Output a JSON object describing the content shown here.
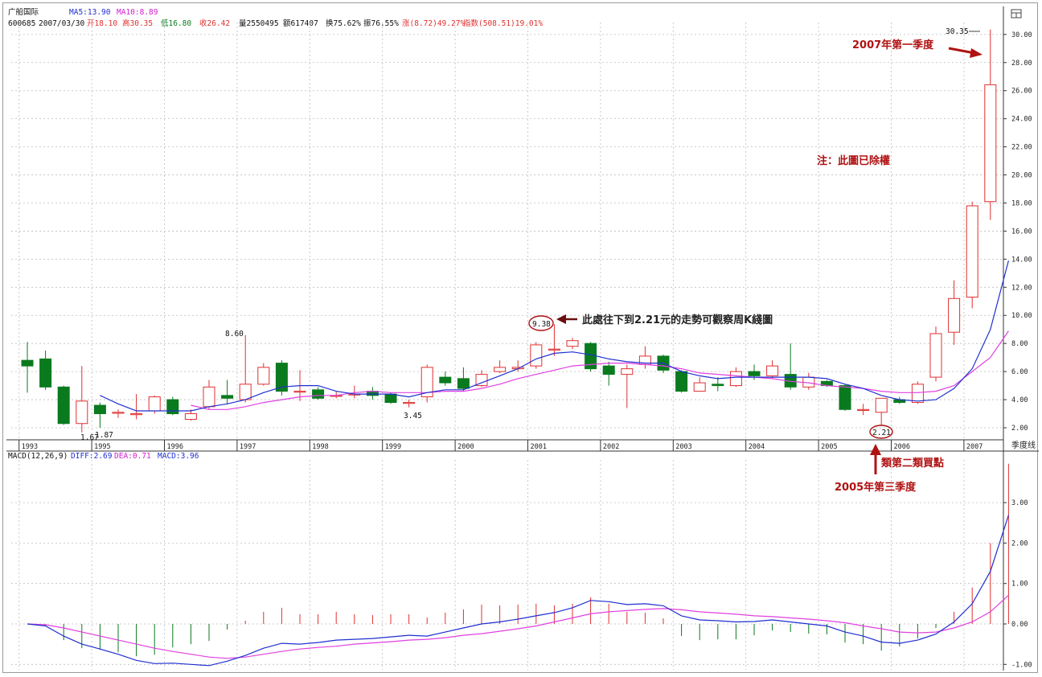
{
  "stock": {
    "name": "广船国际",
    "code": "600685",
    "date": "2007/03/30",
    "ma5": "MA5:13.90",
    "ma10": "MA10:8.89",
    "open": "开18.10",
    "high": "高30.35",
    "low": "低16.80",
    "close": "收26.42",
    "volume": "量2550495",
    "amount": "额617407",
    "turnover1": "换75.62%",
    "turnover2": "振76.55%",
    "change": "涨(8.72)49.27%",
    "index": "指数(508.51)19.01%"
  },
  "macd_header": {
    "name": "MACD(12,26,9)",
    "diff": "DIFF:2.69",
    "dea": "DEA:0.71",
    "macd": "MACD:3.96"
  },
  "period_label": "季度线",
  "price_axis": [
    "30.00",
    "28.00",
    "26.00",
    "24.00",
    "22.00",
    "20.00",
    "18.00",
    "16.00",
    "14.00",
    "12.00",
    "10.00",
    "8.00",
    "6.00",
    "4.00",
    "2.00"
  ],
  "macd_axis": [
    "3.00",
    "2.00",
    "1.00",
    "0.00",
    "-1.00"
  ],
  "years": [
    "1993",
    "1995",
    "1996",
    "1997",
    "1998",
    "1999",
    "2000",
    "2001",
    "2002",
    "2003",
    "2004",
    "2005",
    "2006",
    "2007"
  ],
  "price_labels": {
    "p1": "1.67",
    "p2": "1.87",
    "p3": "8.60",
    "p4": "3.45",
    "p5": "9.38",
    "p6": "2.21",
    "p7": "30.35"
  },
  "annotations": {
    "q1_2007": "2007年第一季度",
    "note": "注：此圖已除權",
    "week_k": "此處往下到2.21元的走勢可觀察周K綫圖",
    "buy_point": "類第二類買點",
    "q3_2005": "2005年第三季度"
  },
  "colors": {
    "up": "#e03030",
    "down": "#0a7a1e",
    "ma5": "#1f2fd0",
    "ma10": "#e040e0",
    "annotation": "#b01212",
    "grid": "#bdbdbd"
  },
  "icons": {
    "corner": "window-restore-icon"
  },
  "chart_data": [
    {
      "type": "candlestick",
      "title": "广船国际 季度线",
      "ylim": [
        1.5,
        31.5
      ],
      "years_axis": [
        "1993",
        "1995",
        "1996",
        "1997",
        "1998",
        "1999",
        "2000",
        "2001",
        "2002",
        "2003",
        "2004",
        "2005",
        "2006",
        "2007"
      ],
      "candles": [
        {
          "o": 6.8,
          "c": 6.4,
          "h": 8.1,
          "l": 4.5
        },
        {
          "o": 6.9,
          "c": 4.9,
          "h": 7.5,
          "l": 4.7
        },
        {
          "o": 4.9,
          "c": 2.3,
          "h": 5.0,
          "l": 2.2
        },
        {
          "o": 2.3,
          "c": 3.9,
          "h": 6.4,
          "l": 1.67
        },
        {
          "o": 3.6,
          "c": 3.0,
          "h": 3.8,
          "l": 2.0
        },
        {
          "o": 3.1,
          "c": 3.1,
          "h": 3.3,
          "l": 2.7
        },
        {
          "o": 3.0,
          "c": 3.0,
          "h": 4.4,
          "l": 2.6
        },
        {
          "o": 3.2,
          "c": 4.2,
          "h": 4.3,
          "l": 3.0
        },
        {
          "o": 4.0,
          "c": 3.0,
          "h": 4.2,
          "l": 2.9
        },
        {
          "o": 2.6,
          "c": 3.0,
          "h": 3.3,
          "l": 2.5
        },
        {
          "o": 3.5,
          "c": 4.9,
          "h": 5.4,
          "l": 3.3
        },
        {
          "o": 4.3,
          "c": 4.1,
          "h": 5.4,
          "l": 3.7
        },
        {
          "o": 4.0,
          "c": 5.1,
          "h": 8.6,
          "l": 3.8
        },
        {
          "o": 5.1,
          "c": 6.3,
          "h": 6.6,
          "l": 5.0
        },
        {
          "o": 6.6,
          "c": 4.6,
          "h": 6.8,
          "l": 4.3
        },
        {
          "o": 4.6,
          "c": 4.6,
          "h": 6.1,
          "l": 3.9
        },
        {
          "o": 4.7,
          "c": 4.1,
          "h": 4.9,
          "l": 4.0
        },
        {
          "o": 4.3,
          "c": 4.3,
          "h": 4.6,
          "l": 4.1
        },
        {
          "o": 4.4,
          "c": 4.4,
          "h": 5.0,
          "l": 4.1
        },
        {
          "o": 4.6,
          "c": 4.3,
          "h": 4.9,
          "l": 4.0
        },
        {
          "o": 4.4,
          "c": 3.8,
          "h": 4.5,
          "l": 3.7
        },
        {
          "o": 3.8,
          "c": 3.8,
          "h": 4.0,
          "l": 3.45
        },
        {
          "o": 4.2,
          "c": 6.3,
          "h": 6.5,
          "l": 3.8
        },
        {
          "o": 5.6,
          "c": 5.2,
          "h": 6.0,
          "l": 5.0
        },
        {
          "o": 5.5,
          "c": 4.8,
          "h": 6.3,
          "l": 4.6
        },
        {
          "o": 5.0,
          "c": 5.8,
          "h": 6.1,
          "l": 4.9
        },
        {
          "o": 6.0,
          "c": 6.3,
          "h": 6.8,
          "l": 5.9
        },
        {
          "o": 6.2,
          "c": 6.3,
          "h": 6.8,
          "l": 6.0
        },
        {
          "o": 6.4,
          "c": 7.9,
          "h": 8.1,
          "l": 6.2
        },
        {
          "o": 7.6,
          "c": 7.6,
          "h": 9.38,
          "l": 7.1
        },
        {
          "o": 7.8,
          "c": 8.2,
          "h": 8.4,
          "l": 7.6
        },
        {
          "o": 8.0,
          "c": 6.2,
          "h": 8.1,
          "l": 6.0
        },
        {
          "o": 6.4,
          "c": 5.8,
          "h": 6.7,
          "l": 5.0
        },
        {
          "o": 5.8,
          "c": 6.2,
          "h": 6.5,
          "l": 3.4
        },
        {
          "o": 6.5,
          "c": 7.1,
          "h": 7.8,
          "l": 6.2
        },
        {
          "o": 7.1,
          "c": 6.1,
          "h": 7.2,
          "l": 5.9
        },
        {
          "o": 6.0,
          "c": 4.6,
          "h": 6.1,
          "l": 4.5
        },
        {
          "o": 4.6,
          "c": 5.2,
          "h": 5.6,
          "l": 4.6
        },
        {
          "o": 5.1,
          "c": 5.0,
          "h": 5.6,
          "l": 4.6
        },
        {
          "o": 5.0,
          "c": 6.0,
          "h": 6.3,
          "l": 4.9
        },
        {
          "o": 6.0,
          "c": 5.7,
          "h": 6.5,
          "l": 5.4
        },
        {
          "o": 5.7,
          "c": 6.4,
          "h": 6.8,
          "l": 5.5
        },
        {
          "o": 5.8,
          "c": 4.9,
          "h": 8.0,
          "l": 4.7
        },
        {
          "o": 4.9,
          "c": 5.6,
          "h": 5.9,
          "l": 4.7
        },
        {
          "o": 5.3,
          "c": 5.0,
          "h": 5.4,
          "l": 4.9
        },
        {
          "o": 5.0,
          "c": 3.3,
          "h": 5.1,
          "l": 3.2
        },
        {
          "o": 3.3,
          "c": 3.3,
          "h": 3.7,
          "l": 2.9
        },
        {
          "o": 3.1,
          "c": 4.1,
          "h": 4.1,
          "l": 2.21
        },
        {
          "o": 4.0,
          "c": 3.8,
          "h": 4.2,
          "l": 3.7
        },
        {
          "o": 3.8,
          "c": 5.1,
          "h": 5.3,
          "l": 3.7
        },
        {
          "o": 5.6,
          "c": 8.7,
          "h": 9.2,
          "l": 5.3
        },
        {
          "o": 8.8,
          "c": 11.2,
          "h": 12.5,
          "l": 7.9
        },
        {
          "o": 11.3,
          "c": 17.8,
          "h": 18.1,
          "l": 10.5
        },
        {
          "o": 18.1,
          "c": 26.42,
          "h": 30.35,
          "l": 16.8
        }
      ],
      "ma5": [
        null,
        null,
        null,
        null,
        4.3,
        3.7,
        3.2,
        3.2,
        3.2,
        3.2,
        3.5,
        3.7,
        4.0,
        4.5,
        4.9,
        5.0,
        5.0,
        4.6,
        4.4,
        4.4,
        4.4,
        4.2,
        4.5,
        4.7,
        4.7,
        5.2,
        5.7,
        6.2,
        6.9,
        7.3,
        7.4,
        7.2,
        6.9,
        6.7,
        6.6,
        6.6,
        6.0,
        5.7,
        5.5,
        5.6,
        5.6,
        5.6,
        5.6,
        5.6,
        5.5,
        5.1,
        4.8,
        4.3,
        4.0,
        3.9,
        4.0,
        4.8,
        6.2,
        9.0,
        13.9
      ],
      "ma10": [
        null,
        null,
        null,
        null,
        null,
        null,
        null,
        null,
        null,
        3.6,
        3.3,
        3.3,
        3.5,
        3.8,
        4.0,
        4.2,
        4.3,
        4.3,
        4.5,
        4.6,
        4.5,
        4.5,
        4.5,
        4.6,
        4.6,
        4.8,
        5.1,
        5.5,
        5.8,
        6.1,
        6.4,
        6.5,
        6.6,
        6.6,
        6.5,
        6.4,
        6.2,
        5.9,
        5.8,
        5.7,
        5.6,
        5.5,
        5.3,
        5.2,
        5.0,
        4.9,
        4.8,
        4.6,
        4.5,
        4.5,
        4.6,
        5.0,
        6.0,
        7.0,
        8.89
      ]
    },
    {
      "type": "line",
      "title": "MACD(12,26,9)",
      "ylim": [
        -1.0,
        4.0
      ],
      "series": [
        {
          "name": "DIFF",
          "values": [
            0.0,
            -0.05,
            -0.3,
            -0.5,
            -0.62,
            -0.75,
            -0.9,
            -0.98,
            -0.97,
            -1.0,
            -1.03,
            -0.92,
            -0.78,
            -0.6,
            -0.48,
            -0.5,
            -0.46,
            -0.4,
            -0.38,
            -0.36,
            -0.32,
            -0.28,
            -0.3,
            -0.2,
            -0.1,
            0.0,
            0.05,
            0.12,
            0.2,
            0.28,
            0.4,
            0.58,
            0.55,
            0.48,
            0.5,
            0.45,
            0.2,
            0.1,
            0.08,
            0.05,
            0.06,
            0.1,
            0.05,
            0.0,
            -0.05,
            -0.2,
            -0.3,
            -0.45,
            -0.48,
            -0.4,
            -0.25,
            0.05,
            0.5,
            1.3,
            2.69
          ]
        },
        {
          "name": "DEA",
          "values": [
            0.0,
            -0.02,
            -0.1,
            -0.2,
            -0.3,
            -0.4,
            -0.5,
            -0.6,
            -0.68,
            -0.75,
            -0.82,
            -0.85,
            -0.82,
            -0.75,
            -0.68,
            -0.62,
            -0.58,
            -0.55,
            -0.5,
            -0.47,
            -0.44,
            -0.4,
            -0.38,
            -0.34,
            -0.28,
            -0.24,
            -0.18,
            -0.12,
            -0.05,
            0.05,
            0.15,
            0.25,
            0.3,
            0.33,
            0.36,
            0.38,
            0.35,
            0.3,
            0.27,
            0.24,
            0.2,
            0.18,
            0.15,
            0.12,
            0.08,
            0.03,
            -0.05,
            -0.12,
            -0.2,
            -0.22,
            -0.2,
            -0.1,
            0.05,
            0.3,
            0.71
          ]
        },
        {
          "name": "MACD",
          "values": [
            0.0,
            -0.06,
            -0.4,
            -0.6,
            -0.64,
            -0.7,
            -0.8,
            -0.76,
            -0.58,
            -0.5,
            -0.42,
            -0.14,
            0.08,
            0.3,
            0.4,
            0.24,
            0.24,
            0.3,
            0.24,
            0.22,
            0.24,
            0.24,
            0.16,
            0.28,
            0.36,
            0.48,
            0.46,
            0.48,
            0.5,
            0.46,
            0.5,
            0.66,
            0.5,
            0.3,
            0.28,
            0.14,
            -0.3,
            -0.4,
            -0.38,
            -0.38,
            -0.28,
            -0.16,
            -0.2,
            -0.24,
            -0.26,
            -0.46,
            -0.5,
            -0.66,
            -0.56,
            -0.36,
            -0.1,
            0.3,
            0.9,
            2.0,
            3.96
          ]
        }
      ]
    }
  ]
}
